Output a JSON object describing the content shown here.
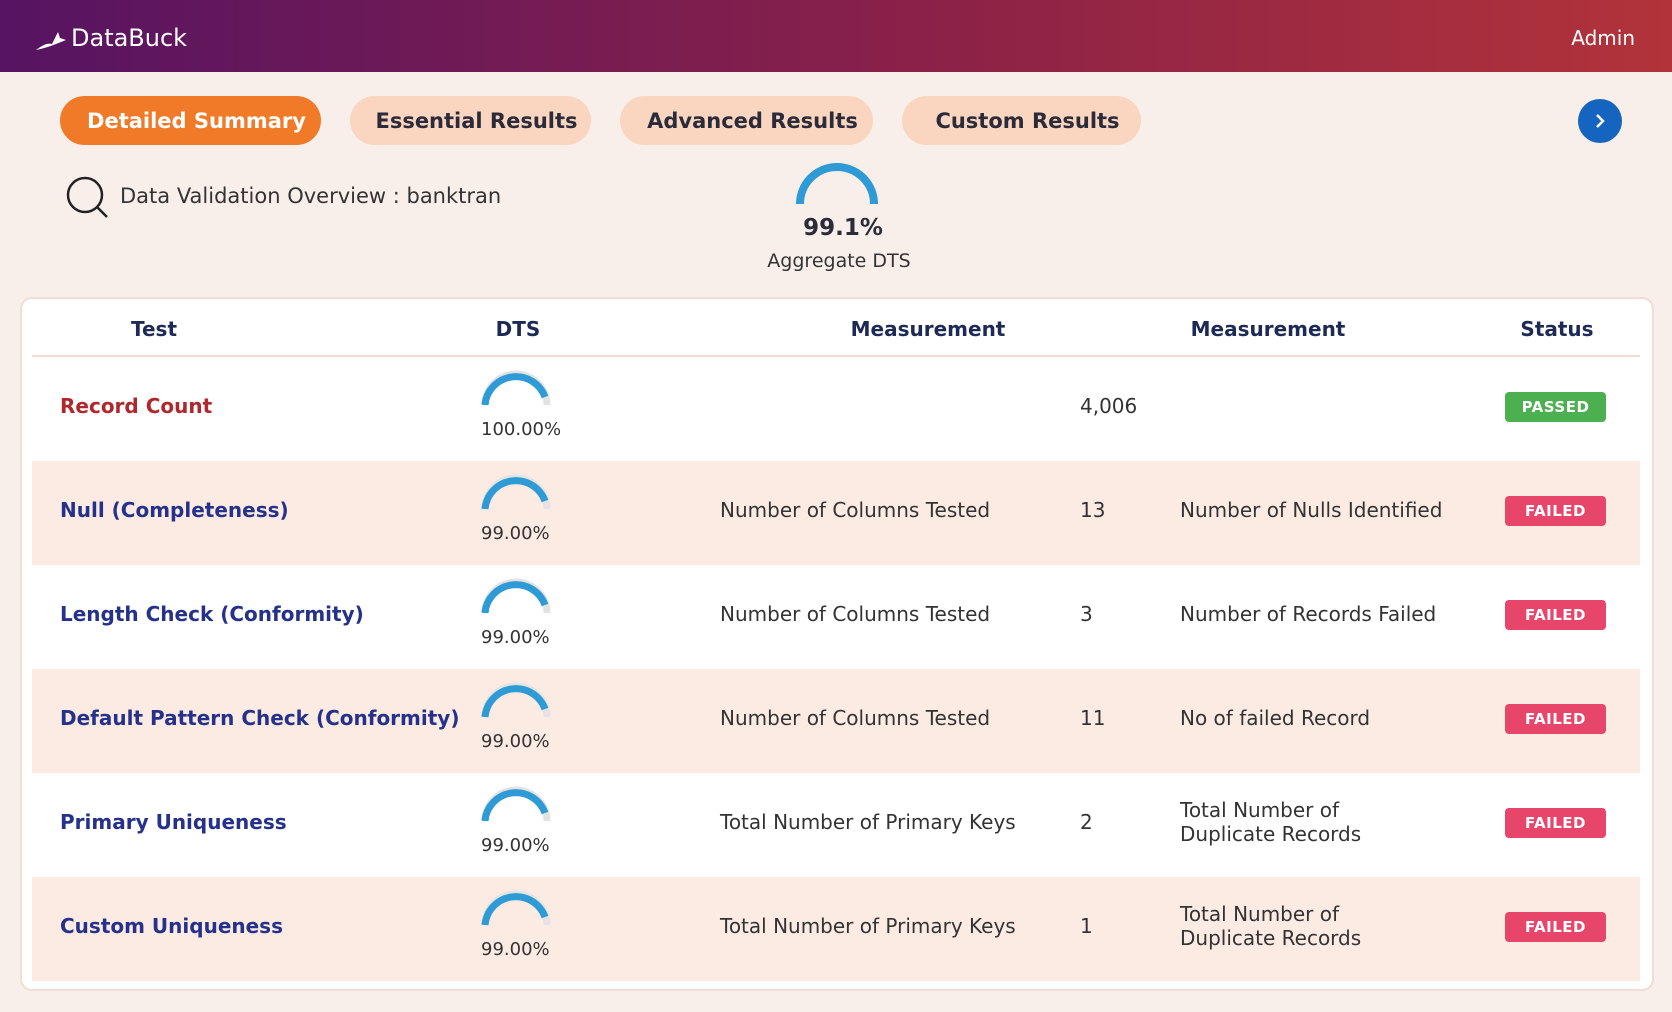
{
  "header": {
    "brand": "DataBuck",
    "user": "Admin"
  },
  "tabs": [
    "Detailed Summary",
    "Essential Results",
    "Advanced Results",
    "Custom Results"
  ],
  "overview": {
    "title": "Data Validation Overview : banktran",
    "aggregate_value": "99.1%",
    "aggregate_label": "Aggregate DTS"
  },
  "table": {
    "columns": [
      "Test",
      "DTS",
      "Measurement",
      "Measurement",
      "Status"
    ],
    "rows": [
      {
        "test": "Record Count",
        "dts": "100.00%",
        "value": "4,006",
        "status": "PASSED"
      },
      {
        "test": "Null (Completeness)",
        "dts": "99.00%",
        "measurement_1": "Number of Columns Tested",
        "value": "13",
        "measurement_2": "Number of Nulls Identified",
        "status": "FAILED"
      },
      {
        "test": "Length Check (Conformity)",
        "dts": "99.00%",
        "measurement_1": "Number of Columns Tested",
        "value": "3",
        "measurement_2": "Number of Records Failed",
        "status": "FAILED"
      },
      {
        "test": "Default Pattern Check (Conformity)",
        "dts": "99.00%",
        "measurement_1": "Number of Columns Tested",
        "value": "11",
        "measurement_2": "No of failed Record",
        "status": "FAILED"
      },
      {
        "test": "Primary Uniqueness",
        "dts": "99.00%",
        "measurement_1": "Total Number of Primary Keys",
        "value": "2",
        "measurement_2": "Total Number of Duplicate Records",
        "status": "FAILED"
      },
      {
        "test": "Custom Uniqueness",
        "dts": "99.00%",
        "measurement_1": "Total Number of Primary Keys",
        "value": "1",
        "measurement_2": "Total Number of Duplicate Records",
        "status": "FAILED"
      }
    ]
  }
}
